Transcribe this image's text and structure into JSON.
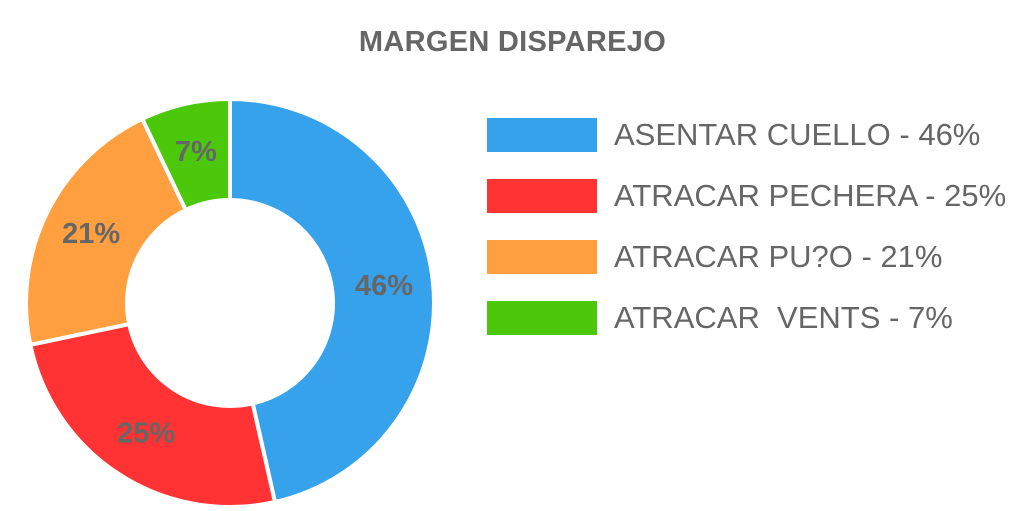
{
  "chart_data": {
    "type": "pie",
    "variant": "donut",
    "title": "MARGEN DISPAREJO",
    "legend_position": "right",
    "slices": [
      {
        "label": "ASENTAR CUELLO",
        "value": 46,
        "value_label": "46%",
        "legend": "ASENTAR CUELLO - 46%",
        "color": "#36a2eb"
      },
      {
        "label": "ATRACAR PECHERA",
        "value": 25,
        "value_label": "25%",
        "legend": "ATRACAR PECHERA - 25%",
        "color": "#ff3333"
      },
      {
        "label": "ATRACAR PU?O",
        "value": 21,
        "value_label": "21%",
        "legend": "ATRACAR PU?O - 21%",
        "color": "#ff9f40"
      },
      {
        "label": "ATRACAR  VENTS",
        "value": 7,
        "value_label": "7%",
        "legend": "ATRACAR  VENTS - 7%",
        "color": "#4bc80a"
      }
    ]
  }
}
